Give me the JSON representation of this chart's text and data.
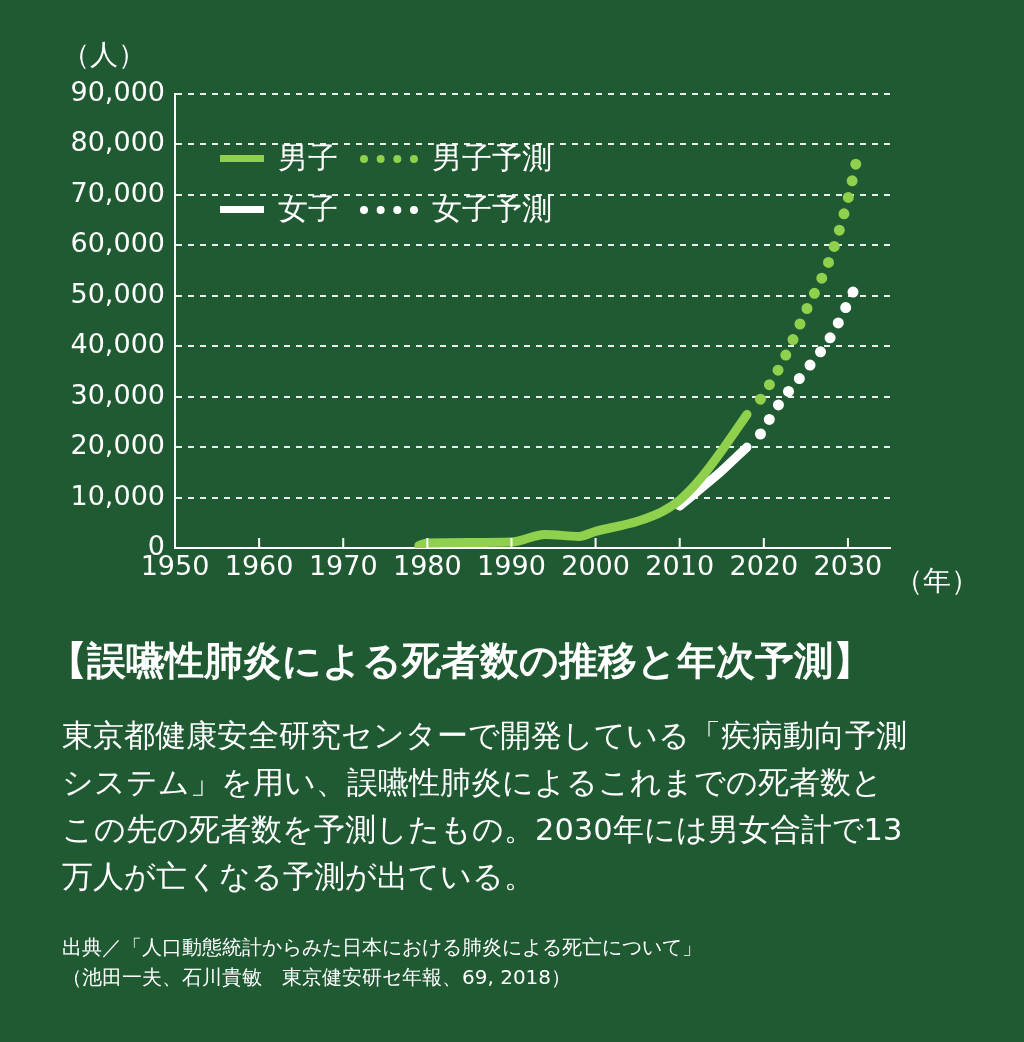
{
  "chart_data": {
    "type": "line",
    "title": "【誤嚥性肺炎による死者数の推移と年次予測】",
    "xlabel": "（年）",
    "ylabel": "（人）",
    "series": [
      {
        "name": "男子",
        "color": "#8fd04c",
        "line_style": "solid",
        "x": [
          1979,
          1980,
          1985,
          1990,
          1994,
          1998,
          2000,
          2005,
          2008,
          2010,
          2012.5,
          2015,
          2018
        ],
        "values": [
          500,
          1000,
          1100,
          1200,
          2700,
          2300,
          3300,
          5300,
          7300,
          9500,
          13800,
          19300,
          26500
        ]
      },
      {
        "name": "男子予測",
        "color": "#8fd04c",
        "line_style": "dotted",
        "x": [
          2019.6,
          2022,
          2025,
          2028,
          2030,
          2031
        ],
        "values": [
          29500,
          36200,
          47000,
          58000,
          69200,
          76600
        ]
      },
      {
        "name": "女子",
        "color": "#ffffff",
        "line_style": "solid",
        "x": [
          2010,
          2012.5,
          2015,
          2018
        ],
        "values": [
          8300,
          11800,
          15300,
          20000
        ]
      },
      {
        "name": "女子予測",
        "color": "#ffffff",
        "line_style": "dotted",
        "x": [
          2019.6,
          2022,
          2025,
          2028,
          2031
        ],
        "values": [
          22600,
          29000,
          35200,
          42000,
          52100
        ]
      }
    ],
    "xlim": [
      1950,
      2035
    ],
    "xticks": [
      1950,
      1960,
      1970,
      1980,
      1990,
      2000,
      2010,
      2020,
      2030
    ],
    "ylim": [
      0,
      90000
    ],
    "yticks": [
      0,
      {
        "value": 10000,
        "label": "10,000"
      },
      {
        "value": 20000,
        "label": "20,000"
      },
      {
        "value": 30000,
        "label": "30,000"
      },
      {
        "value": 40000,
        "label": "40,000"
      },
      {
        "value": 50000,
        "label": "50,000"
      },
      {
        "value": 60000,
        "label": "60,000"
      },
      {
        "value": 70000,
        "label": "70,000"
      },
      {
        "value": 80000,
        "label": "80,000"
      },
      {
        "value": 90000,
        "label": "90,000"
      }
    ],
    "grid": "y",
    "legend": "top left",
    "marker": "none",
    "annotations": [
      "東京都健康安全研究センターで開発している「疾病動向予測システム」を用い、誤嚥性肺炎によるこれまでの死者数とこの先の死者数を予測したもの。2030年には男女合計で13万人が亡くなる予測が出ている。",
      "出典／「人口動態統計からみた日本における肺炎による死亡について」",
      "（池田一夫、石川貴敏　東京健安研セ年報、69, 2018）"
    ]
  }
}
